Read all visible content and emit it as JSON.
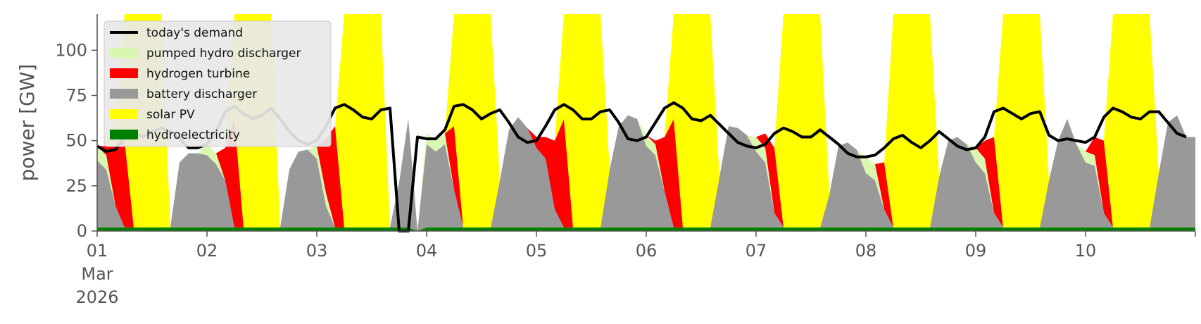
{
  "chart_data": {
    "type": "area",
    "xlabel": "",
    "ylabel": "power [GW]",
    "ylim": [
      0,
      120
    ],
    "xlim": [
      "2026-03-01",
      "2026-03-11"
    ],
    "y_ticks": [
      0,
      25,
      50,
      75,
      100
    ],
    "x_tick_labels": [
      "01\nMar\n2026",
      "02",
      "03",
      "04",
      "05",
      "06",
      "07",
      "08",
      "09",
      "10"
    ],
    "legend": {
      "position": "top-left",
      "entries": [
        "today's demand",
        "pumped hydro discharger",
        "hydrogen turbine",
        "battery discharger",
        "solar PV",
        "hydroelectricity"
      ]
    },
    "grid": false,
    "sample_interval_hours": 2,
    "series": [
      {
        "name": "hydroelectricity",
        "color": "#008000",
        "values": [
          2,
          2,
          2,
          2,
          2,
          2,
          2,
          2,
          2,
          2,
          2,
          2,
          2,
          2,
          2,
          2,
          2,
          2,
          2,
          2,
          2,
          2,
          2,
          2,
          2,
          2,
          2,
          2,
          2,
          2,
          2,
          2,
          2,
          2,
          2,
          0,
          2,
          2,
          2,
          2,
          2,
          2,
          2,
          2,
          2,
          2,
          2,
          2,
          2,
          2,
          2,
          2,
          2,
          2,
          2,
          2,
          2,
          2,
          2,
          2,
          2,
          2,
          2,
          2,
          2,
          2,
          2,
          2,
          2,
          2,
          2,
          2,
          2,
          2,
          2,
          2,
          2,
          2,
          2,
          2,
          2,
          2,
          2,
          2,
          2,
          2,
          2,
          2,
          2,
          2,
          2,
          2,
          2,
          2,
          2,
          2,
          2,
          2,
          2,
          2,
          2,
          2,
          2,
          2,
          2,
          2,
          2,
          2,
          2,
          2,
          2,
          2,
          2,
          2,
          2,
          2,
          2,
          2,
          2,
          2
        ]
      },
      {
        "name": "battery discharger",
        "color": "#999999",
        "values": [
          37,
          32,
          12,
          0,
          0,
          0,
          0,
          0,
          0,
          36,
          41,
          41,
          40,
          35,
          26,
          0,
          0,
          0,
          0,
          0,
          0,
          32,
          42,
          43,
          38,
          12,
          0,
          0,
          0,
          0,
          0,
          0,
          0,
          25,
          60,
          0,
          46,
          42,
          46,
          21,
          0,
          0,
          0,
          0,
          26,
          54,
          61,
          55,
          44,
          38,
          10,
          0,
          0,
          0,
          0,
          0,
          32,
          56,
          62,
          60,
          45,
          40,
          20,
          0,
          0,
          0,
          0,
          0,
          28,
          56,
          55,
          51,
          42,
          36,
          8,
          0,
          0,
          0,
          0,
          0,
          18,
          45,
          47,
          43,
          30,
          26,
          10,
          0,
          0,
          0,
          0,
          0,
          28,
          48,
          50,
          46,
          36,
          30,
          8,
          0,
          0,
          0,
          0,
          0,
          26,
          48,
          60,
          46,
          36,
          34,
          8,
          0,
          0,
          0,
          0,
          0,
          30,
          58,
          62,
          50
        ]
      },
      {
        "name": "pumped hydro discharger",
        "color": "#d9f7b0",
        "values": [
          8,
          8,
          0,
          0,
          0,
          0,
          0,
          0,
          0,
          0,
          0,
          0,
          6,
          6,
          0,
          0,
          0,
          0,
          0,
          0,
          0,
          0,
          0,
          0,
          7,
          7,
          0,
          0,
          0,
          0,
          0,
          0,
          0,
          0,
          0,
          0,
          6,
          6,
          6,
          0,
          0,
          0,
          0,
          0,
          0,
          0,
          0,
          0,
          0,
          0,
          0,
          0,
          0,
          0,
          0,
          0,
          0,
          0,
          0,
          0,
          6,
          6,
          0,
          0,
          0,
          0,
          0,
          0,
          0,
          0,
          0,
          0,
          8,
          8,
          0,
          0,
          0,
          0,
          0,
          0,
          0,
          0,
          0,
          0,
          9,
          9,
          0,
          0,
          0,
          0,
          0,
          0,
          0,
          0,
          0,
          0,
          8,
          8,
          0,
          0,
          0,
          0,
          0,
          0,
          0,
          0,
          0,
          0,
          6,
          6,
          0,
          0,
          0,
          0,
          0,
          0,
          0,
          0,
          0,
          0
        ]
      },
      {
        "name": "hydrogen turbine",
        "color": "#ff0000",
        "values": [
          0,
          5,
          33,
          48,
          0,
          0,
          0,
          0,
          0,
          0,
          0,
          0,
          0,
          0,
          18,
          60,
          0,
          0,
          0,
          0,
          0,
          0,
          0,
          0,
          0,
          30,
          56,
          0,
          0,
          0,
          0,
          0,
          0,
          0,
          0,
          0,
          0,
          0,
          0,
          35,
          0,
          0,
          0,
          0,
          0,
          0,
          0,
          0,
          6,
          12,
          38,
          60,
          0,
          0,
          0,
          0,
          0,
          0,
          0,
          0,
          0,
          2,
          30,
          60,
          0,
          0,
          0,
          0,
          0,
          0,
          0,
          0,
          0,
          8,
          36,
          0,
          0,
          0,
          0,
          0,
          0,
          0,
          0,
          0,
          0,
          0,
          26,
          0,
          0,
          0,
          0,
          0,
          0,
          0,
          0,
          0,
          0,
          10,
          42,
          0,
          0,
          0,
          0,
          0,
          0,
          0,
          0,
          0,
          0,
          10,
          40,
          0,
          0,
          0,
          0,
          0,
          0,
          0,
          0,
          0
        ]
      },
      {
        "name": "solar PV",
        "color": "#ffff00",
        "values": [
          0,
          0,
          15,
          120,
          120,
          120,
          120,
          120,
          0,
          0,
          0,
          0,
          0,
          0,
          0,
          120,
          120,
          120,
          120,
          120,
          0,
          0,
          0,
          0,
          0,
          0,
          0,
          120,
          120,
          120,
          120,
          120,
          0,
          0,
          0,
          0,
          0,
          0,
          0,
          120,
          120,
          120,
          120,
          120,
          0,
          0,
          0,
          0,
          0,
          0,
          0,
          120,
          120,
          120,
          120,
          120,
          0,
          0,
          0,
          0,
          0,
          0,
          0,
          120,
          120,
          120,
          120,
          120,
          0,
          0,
          0,
          0,
          0,
          0,
          0,
          120,
          120,
          120,
          120,
          120,
          0,
          0,
          0,
          0,
          0,
          0,
          0,
          120,
          120,
          120,
          120,
          120,
          0,
          0,
          0,
          0,
          0,
          0,
          0,
          120,
          120,
          120,
          120,
          120,
          0,
          0,
          0,
          0,
          0,
          0,
          0,
          120,
          120,
          120,
          120,
          120,
          0,
          0,
          0,
          0
        ]
      },
      {
        "name": "today's demand",
        "color": "#000000",
        "values": [
          47,
          44,
          45,
          52,
          54,
          52,
          55,
          57,
          55,
          51,
          46,
          46,
          48,
          55,
          66,
          69,
          65,
          62,
          64,
          68,
          62,
          55,
          50,
          48,
          50,
          58,
          68,
          70,
          67,
          63,
          62,
          67,
          68,
          0,
          0,
          52,
          51,
          51,
          56,
          69,
          70,
          67,
          62,
          65,
          67,
          60,
          52,
          49,
          50,
          58,
          67,
          70,
          67,
          62,
          62,
          66,
          67,
          60,
          51,
          50,
          52,
          60,
          68,
          71,
          68,
          62,
          61,
          64,
          59,
          54,
          49,
          47,
          46,
          48,
          54,
          57,
          55,
          52,
          52,
          56,
          52,
          48,
          43,
          41,
          41,
          42,
          46,
          51,
          53,
          49,
          46,
          50,
          55,
          51,
          47,
          45,
          46,
          52,
          66,
          68,
          65,
          62,
          65,
          66,
          53,
          50,
          51,
          50,
          49,
          52,
          63,
          68,
          66,
          63,
          62,
          66,
          66,
          60,
          54,
          52
        ]
      }
    ]
  }
}
